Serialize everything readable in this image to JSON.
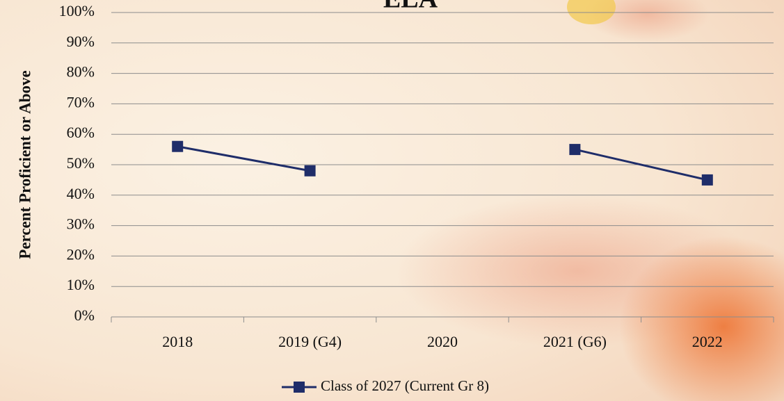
{
  "chart_data": {
    "type": "line",
    "title": "ELA",
    "y_label": "Percent Proficient or Above",
    "categories": [
      "2018",
      "2019 (G4)",
      "2020",
      "2021 (G6)",
      "2022"
    ],
    "series": [
      {
        "name": "Class of 2027 (Current Gr 8)",
        "color": "#1f2d69",
        "values": [
          56,
          48,
          null,
          55,
          45
        ]
      }
    ],
    "ylim": [
      0,
      100
    ],
    "yticks": [
      {
        "value": 0,
        "label": "0%"
      },
      {
        "value": 10,
        "label": "10%"
      },
      {
        "value": 20,
        "label": "20%"
      },
      {
        "value": 30,
        "label": "30%"
      },
      {
        "value": 40,
        "label": "40%"
      },
      {
        "value": 50,
        "label": "50%"
      },
      {
        "value": 60,
        "label": "60%"
      },
      {
        "value": 70,
        "label": "70%"
      },
      {
        "value": 80,
        "label": "80%"
      },
      {
        "value": 90,
        "label": "90%"
      },
      {
        "value": 100,
        "label": "100%"
      }
    ],
    "grid": true,
    "legend": "bottom"
  }
}
